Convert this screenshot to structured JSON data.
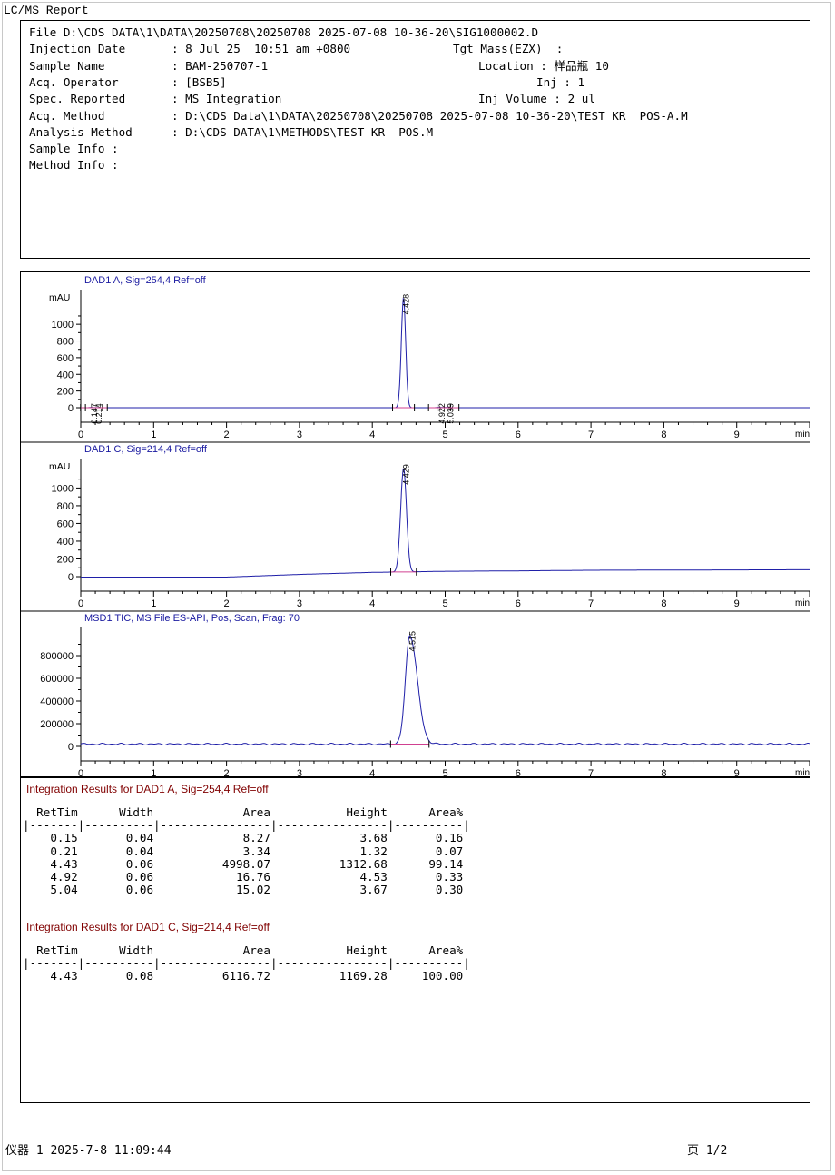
{
  "report_title": "LC/MS Report",
  "header": {
    "file_line": "File D:\\CDS DATA\\1\\DATA\\20250708\\20250708 2025-07-08 10-36-20\\SIG1000002.D",
    "injection_date_label": "Injection Date",
    "injection_date": ": 8 Jul 25  10:51 am +0800",
    "tgt_mass": "Tgt Mass(EZX)  :",
    "sample_name_label": "Sample Name",
    "sample_name": ": BAM-250707-1",
    "location": "Location : 样品瓶 10",
    "operator_label": "Acq. Operator",
    "operator": ": [BSB5]",
    "inj": "Inj : 1",
    "spec_label": "Spec. Reported",
    "spec": ": MS Integration",
    "inj_volume": "Inj Volume : 2 ul",
    "acq_method_label": "Acq. Method",
    "acq_method": ": D:\\CDS Data\\1\\DATA\\20250708\\20250708 2025-07-08 10-36-20\\TEST KR  POS-A.M",
    "analysis_method_label": "Analysis Method",
    "analysis_method": ": D:\\CDS DATA\\1\\METHODS\\TEST KR  POS.M",
    "sample_info": "Sample Info :",
    "method_info": "Method Info :"
  },
  "chart_data": [
    {
      "type": "line",
      "title": "DAD1 A, Sig=254,4 Ref=off",
      "ylabel": "mAU",
      "xlabel": "min",
      "xlim": [
        0,
        10
      ],
      "ylim": [
        -80,
        1350
      ],
      "yticks": [
        0,
        200,
        400,
        600,
        800,
        1000
      ],
      "xticks": [
        0,
        1,
        2,
        3,
        4,
        5,
        6,
        7,
        8,
        9
      ],
      "peaks": [
        {
          "rt": 0.147,
          "label": "0.147",
          "height": 3.68,
          "width": 0.04
        },
        {
          "rt": 0.214,
          "label": "0.214",
          "height": 1.32,
          "width": 0.04
        },
        {
          "rt": 4.428,
          "label": "4.428",
          "height": 1312.68,
          "width": 0.06
        },
        {
          "rt": 4.922,
          "label": "4.922",
          "height": 4.53,
          "width": 0.06
        },
        {
          "rt": 5.039,
          "label": "5.039",
          "height": 3.67,
          "width": 0.06
        }
      ],
      "baseline": [
        [
          0,
          0
        ],
        [
          10,
          0
        ]
      ],
      "color": "#1f1fa8"
    },
    {
      "type": "line",
      "title": "DAD1 C, Sig=214,4 Ref=off",
      "ylabel": "mAU",
      "xlabel": "min",
      "xlim": [
        0,
        10
      ],
      "ylim": [
        -130,
        1250
      ],
      "yticks": [
        0,
        200,
        400,
        600,
        800,
        1000
      ],
      "xticks": [
        0,
        1,
        2,
        3,
        4,
        5,
        6,
        7,
        8,
        9
      ],
      "peaks": [
        {
          "rt": 4.429,
          "label": "4.429",
          "height": 1169.28,
          "width": 0.08
        }
      ],
      "baseline": [
        [
          0,
          -5
        ],
        [
          2,
          -5
        ],
        [
          3,
          25
        ],
        [
          4,
          48
        ],
        [
          4.6,
          55
        ],
        [
          5,
          60
        ],
        [
          6,
          65
        ],
        [
          7,
          72
        ],
        [
          8,
          74
        ],
        [
          9,
          76
        ],
        [
          10,
          78
        ]
      ],
      "color": "#1f1fa8"
    },
    {
      "type": "line",
      "title": "MSD1 TIC, MS File    ES-API, Pos, Scan, Frag: 70",
      "ylabel": "",
      "xlabel": "min",
      "xlim": [
        0,
        10
      ],
      "ylim": [
        -80000,
        1000000
      ],
      "yticks": [
        0,
        200000,
        400000,
        600000,
        800000
      ],
      "xticks": [
        0,
        1,
        2,
        3,
        4,
        5,
        6,
        7,
        8,
        9
      ],
      "peaks": [
        {
          "rt": 4.515,
          "label": "4.515",
          "height": 960000,
          "width": 0.12
        }
      ],
      "baseline": [
        [
          0,
          20000
        ],
        [
          10,
          20000
        ]
      ],
      "color": "#1f1fa8"
    }
  ],
  "results": [
    {
      "title": "Integration Results for DAD1 A, Sig=254,4 Ref=off",
      "columns": [
        "RetTim",
        "Width",
        "Area",
        "Height",
        "Area%"
      ],
      "rows": [
        [
          "0.15",
          "0.04",
          "8.27",
          "3.68",
          "0.16"
        ],
        [
          "0.21",
          "0.04",
          "3.34",
          "1.32",
          "0.07"
        ],
        [
          "4.43",
          "0.06",
          "4998.07",
          "1312.68",
          "99.14"
        ],
        [
          "4.92",
          "0.06",
          "16.76",
          "4.53",
          "0.33"
        ],
        [
          "5.04",
          "0.06",
          "15.02",
          "3.67",
          "0.30"
        ]
      ]
    },
    {
      "title": "Integration Results for DAD1 C, Sig=214,4 Ref=off",
      "columns": [
        "RetTim",
        "Width",
        "Area",
        "Height",
        "Area%"
      ],
      "rows": [
        [
          "4.43",
          "0.08",
          "6116.72",
          "1169.28",
          "100.00"
        ]
      ]
    }
  ],
  "footer": {
    "left": "仪器 1 2025-7-8 11:09:44",
    "right": "页 1/2"
  }
}
